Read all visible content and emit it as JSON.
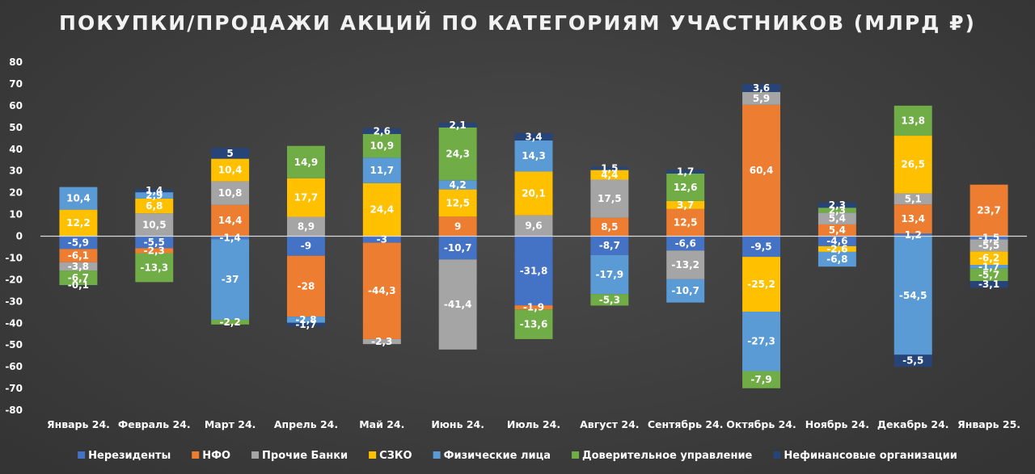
{
  "chart_data": {
    "type": "bar",
    "stacked": true,
    "title": "ПОКУПКИ/ПРОДАЖИ АКЦИЙ ПО КАТЕГОРИЯМ УЧАСТНИКОВ (МЛРД ₽)",
    "xlabel": "",
    "ylabel": "",
    "ylim": [
      -80,
      80
    ],
    "yticks": [
      -80,
      -70,
      -60,
      -50,
      -40,
      -30,
      -20,
      -10,
      0,
      10,
      20,
      30,
      40,
      50,
      60,
      70,
      80
    ],
    "grid": false,
    "legend_position": "bottom",
    "categories": [
      "Январь 24.",
      "Февраль 24.",
      "Март 24.",
      "Апрель 24.",
      "Май 24.",
      "Июнь 24.",
      "Июль 24.",
      "Август 24.",
      "Сентябрь 24.",
      "Октябрь 24.",
      "Ноябрь 24.",
      "Декабрь 24.",
      "Январь 25."
    ],
    "series": [
      {
        "name": "Нерезиденты",
        "color": "#4472c4",
        "values": [
          -5.9,
          -5.5,
          -1.4,
          -9,
          -3,
          -10.7,
          -31.8,
          -8.7,
          -6.6,
          -9.5,
          -4.6,
          1.2,
          -1.5
        ]
      },
      {
        "name": "НФО",
        "color": "#ed7d31",
        "values": [
          -6.1,
          -2.3,
          14.4,
          -28,
          -44.3,
          9,
          -1.9,
          8.5,
          12.5,
          60.4,
          5.4,
          13.4,
          23.7
        ]
      },
      {
        "name": "Прочие Банки",
        "color": "#a5a5a5",
        "values": [
          -3.8,
          10.5,
          10.8,
          8.9,
          -2.3,
          -41.4,
          9.6,
          17.5,
          -13.2,
          5.9,
          5.4,
          5.1,
          -5.5
        ]
      },
      {
        "name": "СЗКО",
        "color": "#ffc000",
        "values": [
          12.2,
          6.8,
          10.4,
          17.7,
          24.4,
          12.5,
          20.1,
          4.4,
          3.7,
          -25.2,
          -2.6,
          26.5,
          -6.2
        ]
      },
      {
        "name": "Физические лица",
        "color": "#5b9bd5",
        "values": [
          10.4,
          2.9,
          -37,
          -2.8,
          11.7,
          4.2,
          14.3,
          -17.9,
          -10.7,
          -27.3,
          -6.8,
          -54.5,
          -1.7
        ]
      },
      {
        "name": "Доверительное управление",
        "color": "#70ad47",
        "values": [
          -6.7,
          -13.3,
          -2.2,
          14.9,
          10.9,
          24.3,
          -13.6,
          -5.3,
          12.6,
          -7.9,
          2.3,
          13.8,
          -5.7
        ]
      },
      {
        "name": "Нефинансовые организации",
        "color": "#264478",
        "values": [
          -0.1,
          1.4,
          5,
          -1.7,
          2.6,
          2.1,
          3.4,
          1.5,
          1.7,
          3.6,
          2.3,
          -5.5,
          -3.1
        ]
      }
    ]
  }
}
